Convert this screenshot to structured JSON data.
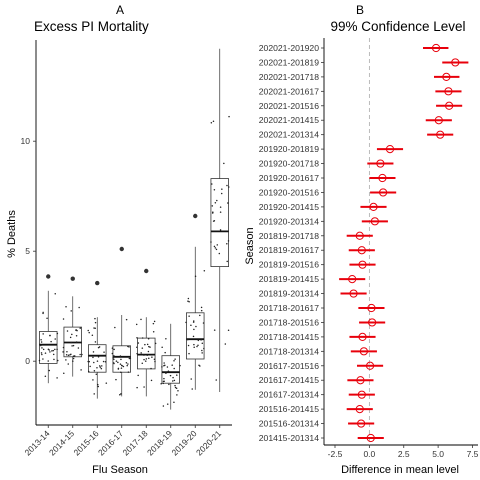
{
  "chart_data": [
    {
      "panel": "A",
      "type": "boxplot",
      "title": "Excess PI Mortality",
      "xlabel": "Flu Season",
      "ylabel": "% Deaths",
      "categories": [
        "2013-14",
        "2014-15",
        "2015-16",
        "2016-17",
        "2017-18",
        "2018-19",
        "2019-20",
        "2020-21"
      ],
      "yticks": [
        0,
        5,
        10
      ],
      "ylim": [
        -2.9,
        14.6
      ],
      "boxes": [
        {
          "q1": -0.1,
          "median": 0.75,
          "q3": 1.35,
          "whisker_low": -1.0,
          "whisker_high": 3.2,
          "outliers": [
            3.85
          ]
        },
        {
          "q1": 0.2,
          "median": 0.85,
          "q3": 1.55,
          "whisker_low": -0.7,
          "whisker_high": 2.95,
          "outliers": [
            3.75
          ]
        },
        {
          "q1": -0.5,
          "median": 0.25,
          "q3": 0.75,
          "whisker_low": -1.7,
          "whisker_high": 2.0,
          "outliers": [
            3.55
          ]
        },
        {
          "q1": -0.5,
          "median": 0.2,
          "q3": 0.7,
          "whisker_low": -1.6,
          "whisker_high": 2.1,
          "outliers": [
            5.1
          ]
        },
        {
          "q1": -0.35,
          "median": 0.3,
          "q3": 1.05,
          "whisker_low": -1.6,
          "whisker_high": 2.0,
          "outliers": [
            4.1
          ]
        },
        {
          "q1": -1.0,
          "median": -0.5,
          "q3": 0.25,
          "whisker_low": -2.2,
          "whisker_high": 1.7,
          "outliers": []
        },
        {
          "q1": 0.1,
          "median": 1.0,
          "q3": 2.2,
          "whisker_low": -1.3,
          "whisker_high": 5.2,
          "outliers": [
            6.6
          ]
        },
        {
          "q1": 4.3,
          "median": 5.9,
          "q3": 8.3,
          "whisker_low": -1.4,
          "whisker_high": 14.2,
          "outliers": []
        }
      ]
    },
    {
      "panel": "B",
      "type": "errorbar",
      "title": "99% Confidence Level",
      "xlabel": "Difference in mean level",
      "ylabel": "Season",
      "xticks": [
        -2.5,
        0.0,
        2.5,
        5.0,
        7.5
      ],
      "xtick_labels": [
        "-2.5",
        "0.0",
        "2.5",
        "5.0",
        "7.5"
      ],
      "xlim": [
        -3.3,
        7.9
      ],
      "reference_line": 0,
      "color": "#e8000b",
      "comparisons": [
        {
          "label": "202021-201920",
          "estimate": 4.85,
          "low": 3.9,
          "high": 5.75
        },
        {
          "label": "202021-201819",
          "estimate": 6.25,
          "low": 5.3,
          "high": 7.2
        },
        {
          "label": "202021-201718",
          "estimate": 5.6,
          "low": 4.7,
          "high": 6.55
        },
        {
          "label": "202021-201617",
          "estimate": 5.75,
          "low": 4.8,
          "high": 6.7
        },
        {
          "label": "202021-201516",
          "estimate": 5.8,
          "low": 4.85,
          "high": 6.75
        },
        {
          "label": "202021-201415",
          "estimate": 5.05,
          "low": 4.1,
          "high": 6.0
        },
        {
          "label": "202021-201314",
          "estimate": 5.15,
          "low": 4.2,
          "high": 6.1
        },
        {
          "label": "201920-201819",
          "estimate": 1.5,
          "low": 0.55,
          "high": 2.45
        },
        {
          "label": "201920-201718",
          "estimate": 0.8,
          "low": -0.15,
          "high": 1.75
        },
        {
          "label": "201920-201617",
          "estimate": 0.95,
          "low": 0.0,
          "high": 1.9
        },
        {
          "label": "201920-201516",
          "estimate": 1.0,
          "low": 0.05,
          "high": 1.95
        },
        {
          "label": "201920-201415",
          "estimate": 0.3,
          "low": -0.65,
          "high": 1.25
        },
        {
          "label": "201920-201314",
          "estimate": 0.4,
          "low": -0.55,
          "high": 1.35
        },
        {
          "label": "201819-201718",
          "estimate": -0.7,
          "low": -1.65,
          "high": 0.25
        },
        {
          "label": "201819-201617",
          "estimate": -0.55,
          "low": -1.5,
          "high": 0.4
        },
        {
          "label": "201819-201516",
          "estimate": -0.5,
          "low": -1.45,
          "high": 0.45
        },
        {
          "label": "201819-201415",
          "estimate": -1.25,
          "low": -2.2,
          "high": -0.3
        },
        {
          "label": "201819-201314",
          "estimate": -1.15,
          "low": -2.1,
          "high": -0.2
        },
        {
          "label": "201718-201617",
          "estimate": 0.15,
          "low": -0.8,
          "high": 1.1
        },
        {
          "label": "201718-201516",
          "estimate": 0.2,
          "low": -0.75,
          "high": 1.15
        },
        {
          "label": "201718-201415",
          "estimate": -0.5,
          "low": -1.45,
          "high": 0.45
        },
        {
          "label": "201718-201314",
          "estimate": -0.4,
          "low": -1.35,
          "high": 0.55
        },
        {
          "label": "201617-201516",
          "estimate": 0.05,
          "low": -0.9,
          "high": 1.0
        },
        {
          "label": "201617-201415",
          "estimate": -0.65,
          "low": -1.6,
          "high": 0.3
        },
        {
          "label": "201617-201314",
          "estimate": -0.55,
          "low": -1.5,
          "high": 0.4
        },
        {
          "label": "201516-201415",
          "estimate": -0.7,
          "low": -1.65,
          "high": 0.25
        },
        {
          "label": "201516-201314",
          "estimate": -0.6,
          "low": -1.55,
          "high": 0.35
        },
        {
          "label": "201415-201314",
          "estimate": 0.1,
          "low": -0.85,
          "high": 1.05
        }
      ]
    }
  ]
}
